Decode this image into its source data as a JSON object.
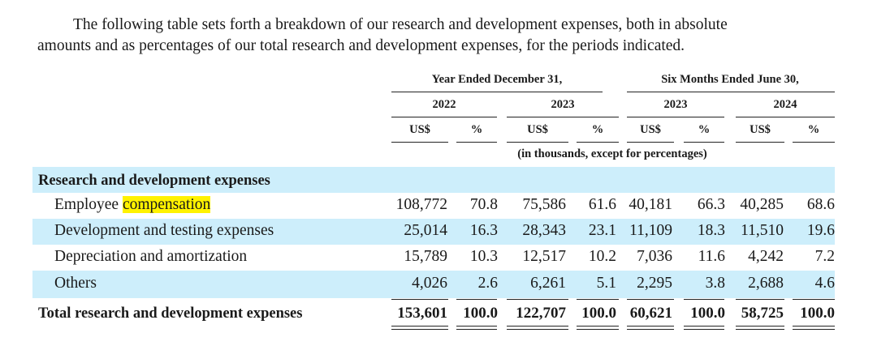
{
  "intro": {
    "line1": "The following table sets forth a breakdown of our research and development expenses, both in absolute",
    "line2": "amounts and as percentages of our total research and development expenses, for the periods indicated."
  },
  "table": {
    "group_headers": [
      "Year Ended December 31,",
      "Six Months Ended June 30,"
    ],
    "years": [
      "2022",
      "2023",
      "2023",
      "2024"
    ],
    "unit_headers": [
      "US$",
      "%",
      "US$",
      "%",
      "US$",
      "%",
      "US$",
      "%"
    ],
    "unit_note": "(in thousands, except for percentages)",
    "section_title": "Research and development expenses",
    "rows": [
      {
        "label_pre": "Employee ",
        "label_highlight": "compensation",
        "values": [
          "108,772",
          "70.8",
          "75,586",
          "61.6",
          "40,181",
          "66.3",
          "40,285",
          "68.6"
        ]
      },
      {
        "label": "Development and testing expenses",
        "values": [
          "25,014",
          "16.3",
          "28,343",
          "23.1",
          "11,109",
          "18.3",
          "11,510",
          "19.6"
        ]
      },
      {
        "label": "Depreciation and amortization",
        "values": [
          "15,789",
          "10.3",
          "12,517",
          "10.2",
          "7,036",
          "11.6",
          "4,242",
          "7.2"
        ]
      },
      {
        "label": "Others",
        "values": [
          "4,026",
          "2.6",
          "6,261",
          "5.1",
          "2,295",
          "3.8",
          "2,688",
          "4.6"
        ]
      }
    ],
    "total": {
      "label": "Total research and development expenses",
      "values": [
        "153,601",
        "100.0",
        "122,707",
        "100.0",
        "60,621",
        "100.0",
        "58,725",
        "100.0"
      ]
    }
  },
  "colors": {
    "row_band": "#cdeefb",
    "highlight": "#fff200"
  }
}
